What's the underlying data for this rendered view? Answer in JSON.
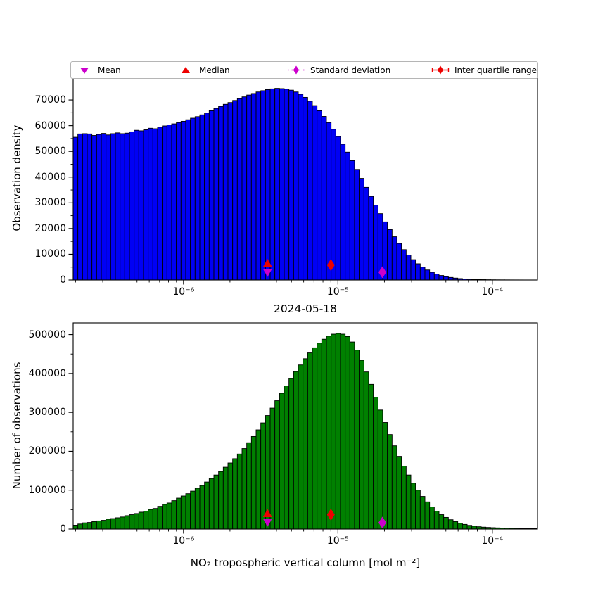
{
  "title": "2024-05-18",
  "colors": {
    "hist_top": "#0000f5",
    "hist_bottom": "#008000",
    "bar_edge": "#000000",
    "red": "#ee0000",
    "magenta": "#cc00cc",
    "legend_border": "#b5b5b5"
  },
  "legend": {
    "items": [
      {
        "label": "Mean",
        "marker": "triangle-down",
        "color": "#cc00cc"
      },
      {
        "label": "Median",
        "marker": "triangle-up",
        "color": "#ee0000"
      },
      {
        "label": "Standard deviation",
        "marker": "diamond-dashed-line",
        "color": "#cc00cc"
      },
      {
        "label": "Inter quartile range",
        "marker": "diamond-solid-line",
        "color": "#ee0000"
      }
    ]
  },
  "chart_data": [
    {
      "type": "bar",
      "name": "observation-density-histogram",
      "ylabel": "Observation density",
      "xlabel": "",
      "x_scale": "log",
      "x_range": [
        1.93e-07,
        0.000196
      ],
      "ylim": [
        0,
        78500
      ],
      "bar_color": "#0000f5",
      "xticks": [
        {
          "v": 1e-06,
          "label": "10⁻⁶"
        },
        {
          "v": 1e-05,
          "label": "10⁻⁵"
        },
        {
          "v": 0.0001,
          "label": "10⁻⁴"
        }
      ],
      "yticks": [
        {
          "v": 0,
          "label": "0"
        },
        {
          "v": 10000,
          "label": "10000"
        },
        {
          "v": 20000,
          "label": "20000"
        },
        {
          "v": 30000,
          "label": "30000"
        },
        {
          "v": 40000,
          "label": "40000"
        },
        {
          "v": 50000,
          "label": "50000"
        },
        {
          "v": 60000,
          "label": "60000"
        },
        {
          "v": 70000,
          "label": "70000"
        }
      ],
      "values": [
        55500,
        56800,
        56900,
        56800,
        56200,
        56600,
        57000,
        56400,
        56900,
        57200,
        56900,
        57100,
        57600,
        58200,
        58000,
        58400,
        59000,
        58800,
        59400,
        59900,
        60300,
        60700,
        61200,
        61700,
        62300,
        62900,
        63500,
        64200,
        64900,
        65800,
        66700,
        67500,
        68300,
        69000,
        69800,
        70500,
        71200,
        71900,
        72500,
        73100,
        73600,
        74000,
        74300,
        74500,
        74400,
        74200,
        73800,
        73100,
        72200,
        71000,
        69500,
        67800,
        65800,
        63600,
        61200,
        58600,
        55800,
        52800,
        49700,
        46400,
        43000,
        39500,
        36000,
        32500,
        29100,
        25800,
        22600,
        19600,
        16800,
        14200,
        11800,
        9700,
        7900,
        6300,
        5000,
        3900,
        3000,
        2300,
        1750,
        1300,
        1000,
        750,
        550,
        420,
        320,
        240,
        180,
        140,
        100,
        80,
        60,
        50,
        40,
        30,
        25,
        20,
        15,
        12,
        10
      ],
      "markers": [
        {
          "name": "median-marker",
          "shape": "triangle-up",
          "color": "#ee0000",
          "x": 3.5e-06,
          "y": 6300
        },
        {
          "name": "mean-marker",
          "shape": "triangle-down",
          "color": "#cc00cc",
          "x": 3.5e-06,
          "y": 3100
        },
        {
          "name": "iqr-marker",
          "shape": "diamond",
          "color": "#ee0000",
          "x": 9e-06,
          "y": 5800
        },
        {
          "name": "std-marker",
          "shape": "diamond",
          "color": "#cc00cc",
          "x": 1.94e-05,
          "y": 3000
        }
      ]
    },
    {
      "type": "bar",
      "name": "number-of-observations-histogram",
      "ylabel": "Number of observations",
      "xlabel": "NO₂ tropospheric vertical column [mol m⁻²]",
      "x_scale": "log",
      "x_range": [
        1.93e-07,
        0.000196
      ],
      "ylim": [
        0,
        530000
      ],
      "bar_color": "#008000",
      "xticks": [
        {
          "v": 1e-06,
          "label": "10⁻⁶"
        },
        {
          "v": 1e-05,
          "label": "10⁻⁵"
        },
        {
          "v": 0.0001,
          "label": "10⁻⁴"
        }
      ],
      "yticks": [
        {
          "v": 0,
          "label": "0"
        },
        {
          "v": 100000,
          "label": "100000"
        },
        {
          "v": 200000,
          "label": "200000"
        },
        {
          "v": 300000,
          "label": "300000"
        },
        {
          "v": 400000,
          "label": "400000"
        },
        {
          "v": 500000,
          "label": "500000"
        }
      ],
      "values": [
        10000,
        13000,
        16000,
        17000,
        19000,
        21000,
        22500,
        25500,
        27000,
        29000,
        31000,
        34500,
        37000,
        40000,
        43500,
        46000,
        50500,
        53000,
        58500,
        63500,
        67000,
        73000,
        79500,
        85000,
        91000,
        97500,
        105000,
        112000,
        121000,
        130000,
        139000,
        148000,
        159000,
        170000,
        181000,
        193000,
        207000,
        222000,
        238000,
        255000,
        273000,
        292000,
        311000,
        330000,
        349000,
        368000,
        387000,
        405000,
        422000,
        438000,
        453000,
        466000,
        478000,
        488000,
        496000,
        501000,
        503000,
        501000,
        495000,
        481000,
        460000,
        434000,
        404000,
        372000,
        339000,
        306000,
        274000,
        243000,
        214000,
        187000,
        162000,
        139000,
        118000,
        100000,
        84000,
        70000,
        57000,
        46000,
        37000,
        30000,
        24000,
        19000,
        15000,
        12000,
        9500,
        7500,
        6000,
        5000,
        4200,
        3600,
        3100,
        2700,
        2400,
        2100,
        1900,
        1700,
        1500,
        1400,
        1300
      ],
      "markers": [
        {
          "name": "median-marker",
          "shape": "triangle-up",
          "color": "#ee0000",
          "x": 3.5e-06,
          "y": 39000
        },
        {
          "name": "mean-marker",
          "shape": "triangle-down",
          "color": "#cc00cc",
          "x": 3.5e-06,
          "y": 18500
        },
        {
          "name": "iqr-marker",
          "shape": "diamond",
          "color": "#ee0000",
          "x": 9e-06,
          "y": 37000
        },
        {
          "name": "std-marker",
          "shape": "diamond",
          "color": "#cc00cc",
          "x": 1.94e-05,
          "y": 16500
        }
      ]
    }
  ]
}
